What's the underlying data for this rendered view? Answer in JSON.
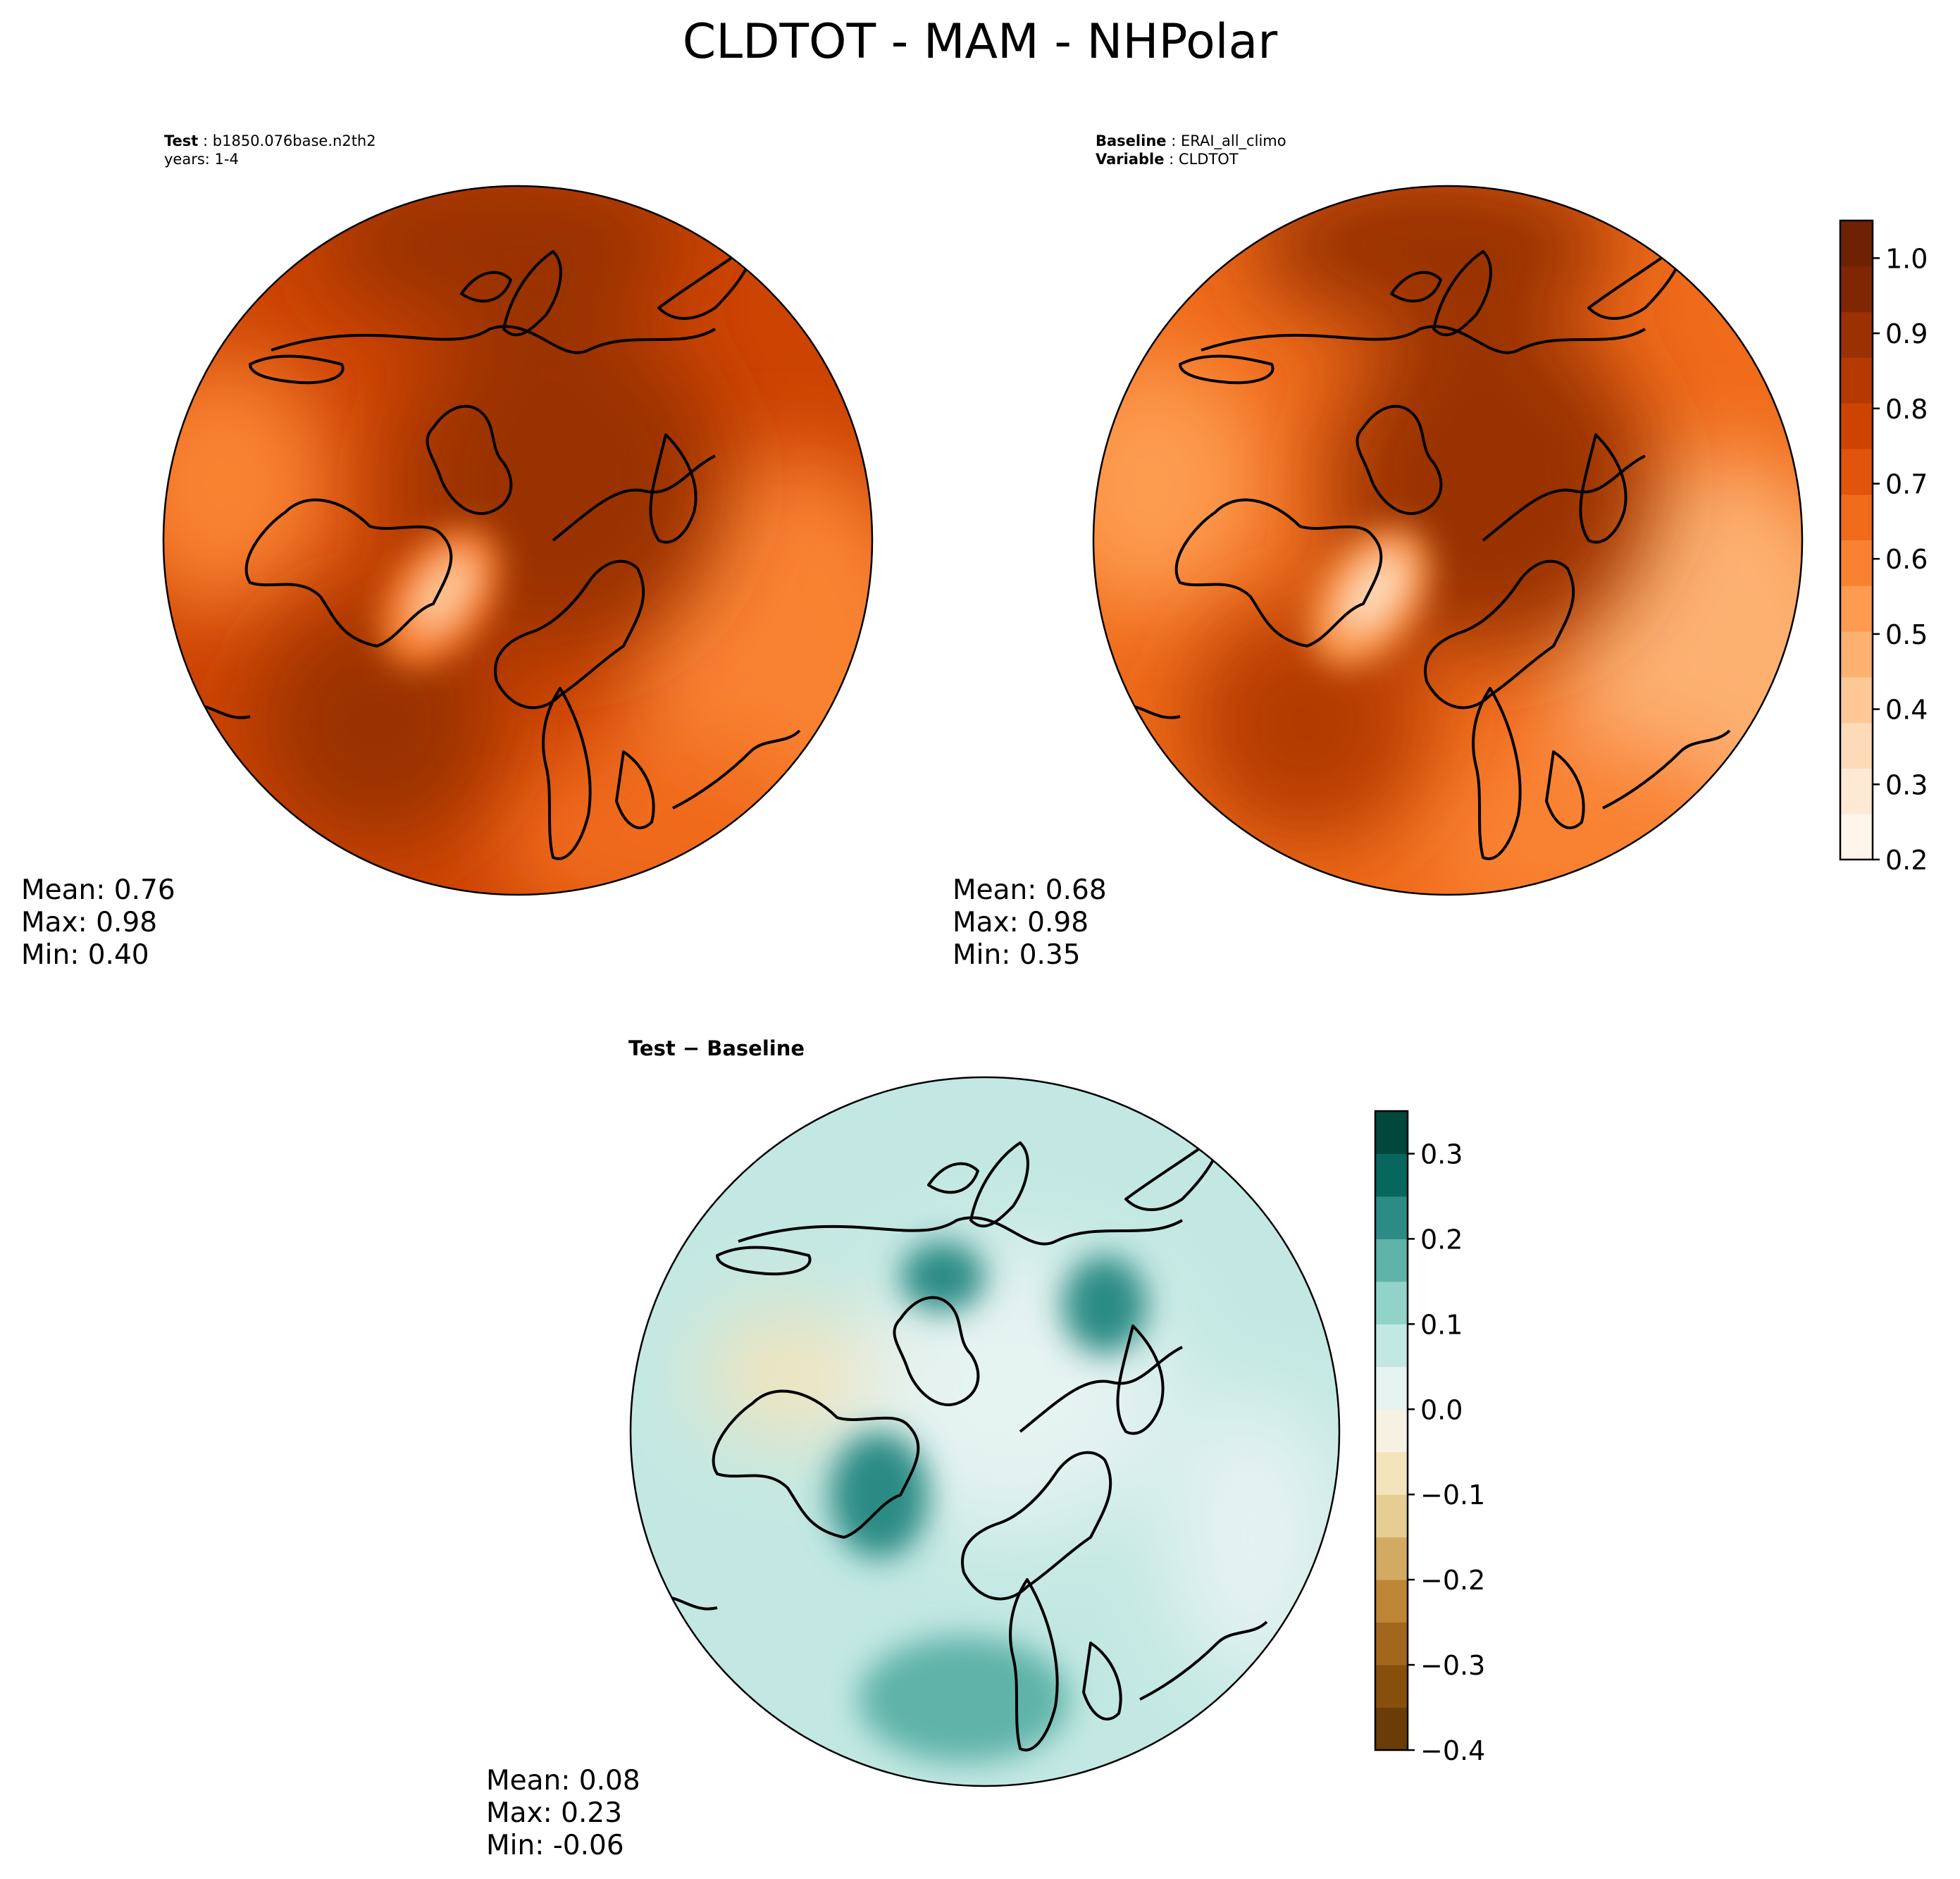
{
  "figure": {
    "title": "CLDTOT - MAM - NHPolar"
  },
  "panels": [
    {
      "id": "test",
      "header": [
        {
          "key": "Test",
          "sep": " : ",
          "value": "b1850.076base.n2th2"
        },
        {
          "key": "",
          "sep": "",
          "value": "years: 1-4"
        }
      ],
      "stats": [
        "Mean:  0.76",
        "Max:  0.98",
        "Min:  0.40"
      ],
      "colormap": "Oranges",
      "field": {
        "background_level": 0.76,
        "pole_level": 0.92,
        "greenland_min": 0.4
      }
    },
    {
      "id": "baseline",
      "header": [
        {
          "key": "Baseline",
          "sep": " : ",
          "value": "ERAI_all_climo"
        },
        {
          "key": "Variable",
          "sep": " : ",
          "value": "CLDTOT"
        }
      ],
      "stats": [
        "Mean:  0.68",
        "Max:  0.98",
        "Min:  0.35"
      ],
      "colormap": "Oranges",
      "field": {
        "background_level": 0.68,
        "pole_level": 0.9,
        "greenland_min": 0.35
      }
    },
    {
      "id": "diff",
      "header": [
        {
          "key": "Test − Baseline",
          "sep": "",
          "value": ""
        }
      ],
      "stats": [
        "Mean:  0.08",
        "Max:  0.23",
        "Min: -0.06"
      ],
      "colormap": "BrBG",
      "field": {
        "background_level": 0.08,
        "max": 0.23,
        "min": -0.06
      }
    }
  ],
  "colorbars": [
    {
      "id": "main-colorbar",
      "ticks": [
        "0.2",
        "0.3",
        "0.4",
        "0.5",
        "0.6",
        "0.7",
        "0.8",
        "0.9",
        "1.0"
      ],
      "range": [
        0.2,
        1.05
      ],
      "colors": [
        "#fff5eb",
        "#fee9d4",
        "#fddbb8",
        "#fdc895",
        "#fdb171",
        "#fd9b50",
        "#f98232",
        "#f06b1a",
        "#e1540c",
        "#cd4402",
        "#b43a02",
        "#9a3103",
        "#7f2704",
        "#6e2203"
      ]
    },
    {
      "id": "diff-colorbar",
      "ticks": [
        "−0.4",
        "−0.3",
        "−0.2",
        "−0.1",
        "0.0",
        "0.1",
        "0.2",
        "0.3"
      ],
      "range": [
        -0.4,
        0.35
      ],
      "colors": [
        "#6a3d08",
        "#86500c",
        "#a2661d",
        "#bd8535",
        "#d3aa62",
        "#e6cd92",
        "#f4e4bb",
        "#f6f1e1",
        "#e5f3f1",
        "#c3e8e3",
        "#92d3c9",
        "#5fb3a9",
        "#2c8b84",
        "#07675f",
        "#01473c"
      ]
    }
  ]
}
